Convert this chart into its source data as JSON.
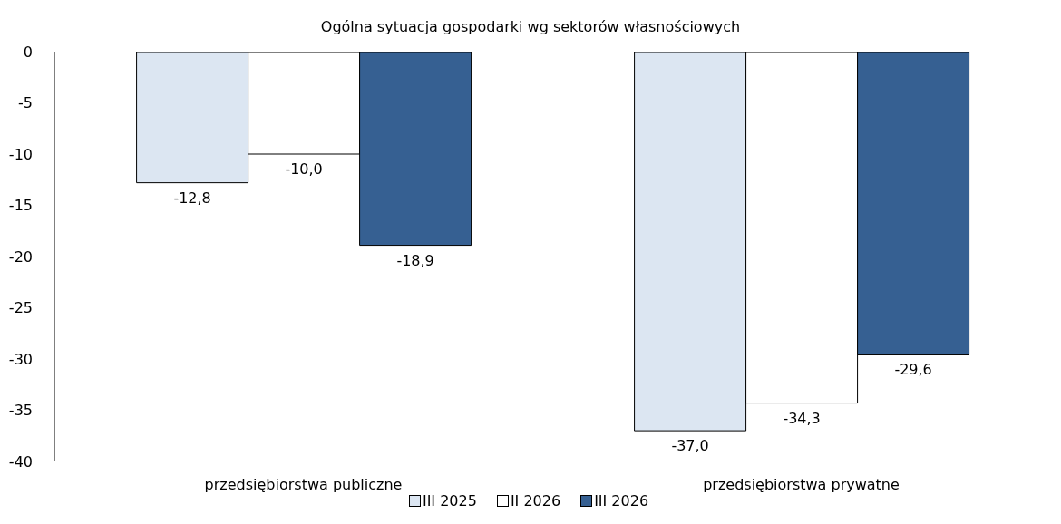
{
  "chart_data": {
    "type": "bar",
    "title": "Ogólna sytuacja gospodarki wg sektorów własnościowych",
    "categories": [
      "przedsiębiorstwa publiczne",
      "przedsiębiorstwa prywatne"
    ],
    "series": [
      {
        "name": "III 2025",
        "color": "#dce6f2",
        "values": [
          -12.8,
          -37.0
        ],
        "value_labels": [
          "-12,8",
          "-37,0"
        ]
      },
      {
        "name": "II 2026",
        "color": "#ffffff",
        "values": [
          -10.0,
          -34.3
        ],
        "value_labels": [
          "-10,0",
          "-34,3"
        ]
      },
      {
        "name": "III 2026",
        "color": "#366092",
        "values": [
          -18.9,
          -29.6
        ],
        "value_labels": [
          "-18,9",
          "-29,6"
        ]
      }
    ],
    "ylim": [
      -40,
      0
    ],
    "yticks": [
      0,
      -5,
      -10,
      -15,
      -20,
      -25,
      -30,
      -35,
      -40
    ],
    "grid": false,
    "legend": "bottom"
  }
}
